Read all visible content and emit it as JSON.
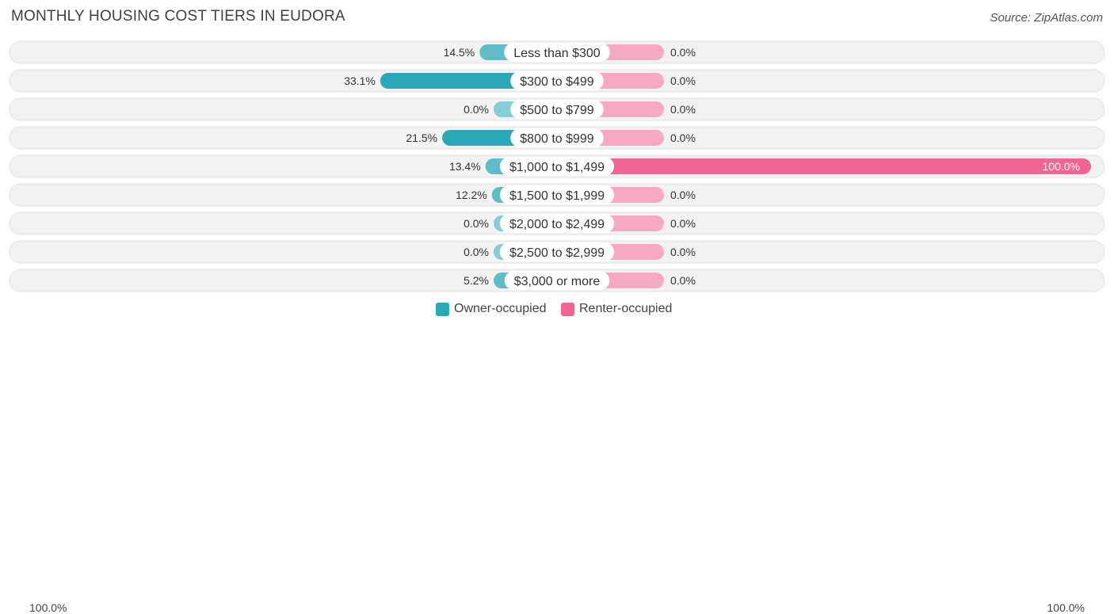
{
  "header": {
    "title": "MONTHLY HOUSING COST TIERS IN EUDORA",
    "source": "Source: ZipAtlas.com"
  },
  "colors": {
    "owner": "#2aa8b8",
    "owner_light": "#86cdd6",
    "renter": "#f06591",
    "renter_light": "#f7a9c2",
    "track": "#f1f1f1"
  },
  "legend": {
    "owner_label": "Owner-occupied",
    "renter_label": "Renter-occupied",
    "axis_left": "100.0%",
    "axis_right": "100.0%"
  },
  "chart_data": {
    "type": "bar",
    "orientation": "horizontal-diverging",
    "categories": [
      "Less than $300",
      "$300 to $499",
      "$500 to $799",
      "$800 to $999",
      "$1,000 to $1,499",
      "$1,500 to $1,999",
      "$2,000 to $2,499",
      "$2,500 to $2,999",
      "$3,000 or more"
    ],
    "series": [
      {
        "name": "Owner-occupied",
        "values": [
          14.5,
          33.1,
          0.0,
          21.5,
          13.4,
          12.2,
          0.0,
          0.0,
          5.2
        ],
        "labels": [
          "14.5%",
          "33.1%",
          "0.0%",
          "21.5%",
          "13.4%",
          "12.2%",
          "0.0%",
          "0.0%",
          "5.2%"
        ]
      },
      {
        "name": "Renter-occupied",
        "values": [
          0.0,
          0.0,
          0.0,
          0.0,
          100.0,
          0.0,
          0.0,
          0.0,
          0.0
        ],
        "labels": [
          "0.0%",
          "0.0%",
          "0.0%",
          "0.0%",
          "100.0%",
          "0.0%",
          "0.0%",
          "0.0%",
          "0.0%"
        ]
      }
    ],
    "xlim": [
      -100,
      100
    ]
  }
}
